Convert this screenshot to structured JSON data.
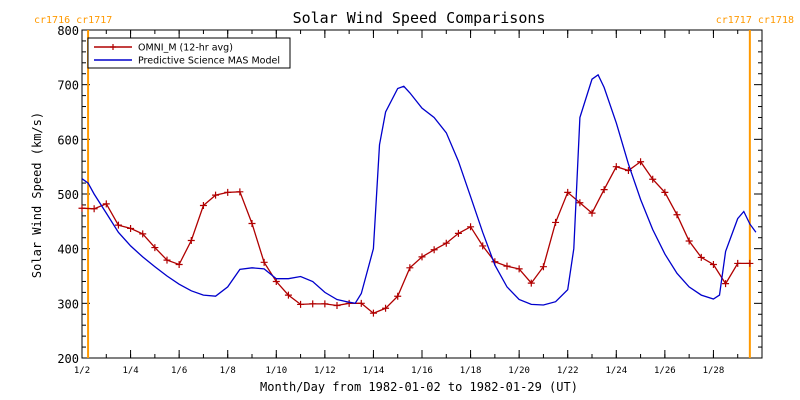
{
  "chart_data": {
    "type": "line",
    "title": "Solar Wind Speed Comparisons",
    "xlabel": "Month/Day from 1982-01-02 to 1982-01-29 (UT)",
    "ylabel": "Solar Wind Speed (km/s)",
    "xlim": [
      "1982-01-02",
      "1982-01-29"
    ],
    "ylim": [
      200,
      800
    ],
    "yticks": [
      200,
      300,
      400,
      500,
      600,
      700,
      800
    ],
    "xtick_labels": [
      "1/2",
      "1/4",
      "1/6",
      "1/8",
      "1/10",
      "1/12",
      "1/14",
      "1/16",
      "1/18",
      "1/20",
      "1/22",
      "1/24",
      "1/26",
      "1/28"
    ],
    "xtick_dates": [
      "1982-01-02",
      "1982-01-04",
      "1982-01-06",
      "1982-01-08",
      "1982-01-10",
      "1982-01-12",
      "1982-01-14",
      "1982-01-16",
      "1982-01-18",
      "1982-01-20",
      "1982-01-22",
      "1982-01-24",
      "1982-01-26",
      "1982-01-28"
    ],
    "grid": false,
    "legend_position": "top-left",
    "carrington_markers": [
      {
        "date": "1982-01-02T06:00",
        "label": "cr1716 cr1717",
        "side": "left"
      },
      {
        "date": "1982-01-29T12:00",
        "label": "cr1717 cr1718",
        "side": "right"
      }
    ],
    "colors": {
      "omni": "#b00000",
      "model": "#0000cc",
      "marker": "#ff9900"
    },
    "series": [
      {
        "name": "OMNI_M (12-hr avg)",
        "marker": "plus",
        "x": [
          "1982-01-02T00:00",
          "1982-01-02T12:00",
          "1982-01-03T00:00",
          "1982-01-03T12:00",
          "1982-01-04T00:00",
          "1982-01-04T12:00",
          "1982-01-05T00:00",
          "1982-01-05T12:00",
          "1982-01-06T00:00",
          "1982-01-06T12:00",
          "1982-01-07T00:00",
          "1982-01-07T12:00",
          "1982-01-08T00:00",
          "1982-01-08T12:00",
          "1982-01-09T00:00",
          "1982-01-09T12:00",
          "1982-01-10T00:00",
          "1982-01-10T12:00",
          "1982-01-11T00:00",
          "1982-01-11T12:00",
          "1982-01-12T00:00",
          "1982-01-12T12:00",
          "1982-01-13T00:00",
          "1982-01-13T12:00",
          "1982-01-14T00:00",
          "1982-01-14T12:00",
          "1982-01-15T00:00",
          "1982-01-15T12:00",
          "1982-01-16T00:00",
          "1982-01-16T12:00",
          "1982-01-17T00:00",
          "1982-01-17T12:00",
          "1982-01-18T00:00",
          "1982-01-18T12:00",
          "1982-01-19T00:00",
          "1982-01-19T12:00",
          "1982-01-20T00:00",
          "1982-01-20T12:00",
          "1982-01-21T00:00",
          "1982-01-21T12:00",
          "1982-01-22T00:00",
          "1982-01-22T12:00",
          "1982-01-23T00:00",
          "1982-01-23T12:00",
          "1982-01-24T00:00",
          "1982-01-24T12:00",
          "1982-01-25T00:00",
          "1982-01-25T12:00",
          "1982-01-26T00:00",
          "1982-01-26T12:00",
          "1982-01-27T00:00",
          "1982-01-27T12:00",
          "1982-01-28T00:00",
          "1982-01-28T12:00",
          "1982-01-29T00:00",
          "1982-01-29T12:00"
        ],
        "values": [
          474,
          473,
          482,
          443,
          437,
          427,
          402,
          379,
          371,
          415,
          479,
          498,
          503,
          504,
          446,
          375,
          340,
          315,
          298,
          299,
          299,
          296,
          300,
          300,
          282,
          291,
          313,
          365,
          385,
          398,
          410,
          428,
          440,
          405,
          376,
          368,
          363,
          337,
          367,
          448,
          503,
          484,
          465,
          508,
          550,
          543,
          559,
          527,
          503,
          462,
          414,
          384,
          371,
          336,
          373,
          373
        ]
      },
      {
        "name": "Predictive Science MAS Model",
        "marker": "none",
        "x": [
          "1982-01-02T00:00",
          "1982-01-02T06:00",
          "1982-01-02T12:00",
          "1982-01-03T00:00",
          "1982-01-03T12:00",
          "1982-01-04T00:00",
          "1982-01-04T12:00",
          "1982-01-05T00:00",
          "1982-01-05T12:00",
          "1982-01-06T00:00",
          "1982-01-06T12:00",
          "1982-01-07T00:00",
          "1982-01-07T12:00",
          "1982-01-08T00:00",
          "1982-01-08T12:00",
          "1982-01-09T00:00",
          "1982-01-09T12:00",
          "1982-01-10T00:00",
          "1982-01-10T12:00",
          "1982-01-11T00:00",
          "1982-01-11T12:00",
          "1982-01-12T00:00",
          "1982-01-12T12:00",
          "1982-01-13T00:00",
          "1982-01-13T06:00",
          "1982-01-13T12:00",
          "1982-01-14T00:00",
          "1982-01-14T06:00",
          "1982-01-14T12:00",
          "1982-01-15T00:00",
          "1982-01-15T06:00",
          "1982-01-15T12:00",
          "1982-01-16T00:00",
          "1982-01-16T12:00",
          "1982-01-17T00:00",
          "1982-01-17T12:00",
          "1982-01-18T00:00",
          "1982-01-18T12:00",
          "1982-01-19T00:00",
          "1982-01-19T12:00",
          "1982-01-20T00:00",
          "1982-01-20T12:00",
          "1982-01-21T00:00",
          "1982-01-21T12:00",
          "1982-01-22T00:00",
          "1982-01-22T06:00",
          "1982-01-22T12:00",
          "1982-01-23T00:00",
          "1982-01-23T06:00",
          "1982-01-23T12:00",
          "1982-01-24T00:00",
          "1982-01-24T12:00",
          "1982-01-25T00:00",
          "1982-01-25T12:00",
          "1982-01-26T00:00",
          "1982-01-26T12:00",
          "1982-01-27T00:00",
          "1982-01-27T12:00",
          "1982-01-28T00:00",
          "1982-01-28T06:00",
          "1982-01-28T12:00",
          "1982-01-29T00:00",
          "1982-01-29T06:00",
          "1982-01-29T12:00",
          "1982-01-29T18:00"
        ],
        "values": [
          528,
          520,
          500,
          465,
          430,
          405,
          385,
          367,
          350,
          335,
          323,
          315,
          313,
          330,
          362,
          365,
          363,
          345,
          345,
          349,
          340,
          320,
          307,
          302,
          300,
          318,
          400,
          590,
          650,
          693,
          697,
          685,
          657,
          640,
          612,
          560,
          495,
          430,
          370,
          330,
          307,
          298,
          297,
          303,
          325,
          400,
          640,
          710,
          718,
          695,
          630,
          555,
          490,
          435,
          390,
          355,
          330,
          315,
          308,
          315,
          395,
          455,
          468,
          445,
          430
        ]
      }
    ]
  }
}
